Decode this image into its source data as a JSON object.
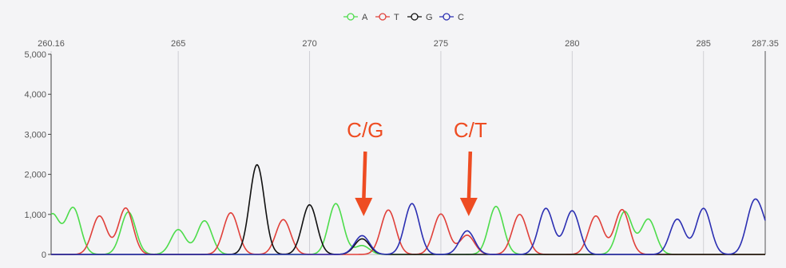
{
  "chart_data": {
    "type": "line",
    "xlim": [
      260.16,
      287.35
    ],
    "ylim": [
      0,
      5000
    ],
    "grid": true,
    "legend_position": "top-center",
    "x_tick_labels": [
      "260.16",
      "265",
      "270",
      "275",
      "280",
      "285",
      "287.35"
    ],
    "x_ticks": [
      260.16,
      265,
      270,
      275,
      280,
      285,
      287.35
    ],
    "y_ticks": [
      0,
      1000,
      2000,
      3000,
      4000,
      5000
    ],
    "y_tick_labels": [
      "0",
      "1,000",
      "2,000",
      "3,000",
      "4,000",
      "5,000"
    ],
    "peak_width": 0.28,
    "series": [
      {
        "name": "A",
        "color": "#4ddc4b",
        "peaks": [
          [
            260.2,
            1000
          ],
          [
            261.0,
            1160
          ],
          [
            263.1,
            1060
          ],
          [
            265.0,
            620
          ],
          [
            266.0,
            840
          ],
          [
            271.0,
            1270
          ],
          [
            272.0,
            220
          ],
          [
            277.1,
            1200
          ],
          [
            282.0,
            1070
          ],
          [
            282.9,
            880
          ]
        ]
      },
      {
        "name": "T",
        "color": "#e0403a",
        "peaks": [
          [
            262.0,
            960
          ],
          [
            263.0,
            1160
          ],
          [
            267.0,
            1040
          ],
          [
            269.0,
            870
          ],
          [
            273.0,
            1110
          ],
          [
            275.0,
            1010
          ],
          [
            276.0,
            480
          ],
          [
            278.0,
            1000
          ],
          [
            280.9,
            960
          ],
          [
            281.9,
            1120
          ]
        ]
      },
      {
        "name": "G",
        "color": "#111111",
        "peaks": [
          [
            268.0,
            2240
          ],
          [
            270.0,
            1240
          ],
          [
            272.0,
            390
          ]
        ]
      },
      {
        "name": "C",
        "color": "#2b2fb2",
        "peaks": [
          [
            272.0,
            470
          ],
          [
            273.9,
            1270
          ],
          [
            276.0,
            590
          ],
          [
            279.0,
            1150
          ],
          [
            280.0,
            1090
          ],
          [
            284.0,
            880
          ],
          [
            285.0,
            1150
          ],
          [
            286.9,
            1150
          ],
          [
            287.3,
            540
          ]
        ]
      }
    ],
    "annotations": [
      {
        "text": "C/G",
        "x": 272.0
      },
      {
        "text": "C/T",
        "x": 276.0
      }
    ]
  }
}
